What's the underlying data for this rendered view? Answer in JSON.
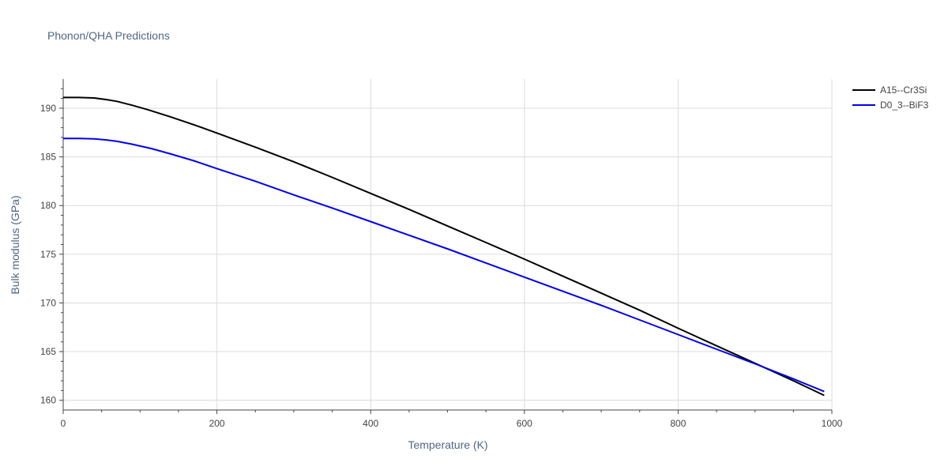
{
  "chart_data": {
    "type": "line",
    "title": "Phonon/QHA Predictions",
    "xlabel": "Temperature (K)",
    "ylabel": "Bulk modulus (GPa)",
    "xlim": [
      0,
      1000
    ],
    "ylim": [
      159,
      193
    ],
    "x_ticks": [
      0,
      200,
      400,
      600,
      800,
      1000
    ],
    "y_ticks": [
      160,
      165,
      170,
      175,
      180,
      185,
      190
    ],
    "grid": true,
    "legend_position": "top-right",
    "series": [
      {
        "name": "A15--Cr3Si",
        "color": "#000000",
        "x": [
          0,
          20,
          40,
          55,
          70,
          90,
          110,
          140,
          170,
          200,
          250,
          300,
          350,
          400,
          450,
          500,
          550,
          600,
          650,
          700,
          750,
          800,
          850,
          900,
          950,
          990
        ],
        "y": [
          191.1,
          191.1,
          191.05,
          190.9,
          190.7,
          190.3,
          189.85,
          189.1,
          188.3,
          187.45,
          186.0,
          184.5,
          182.9,
          181.25,
          179.6,
          177.9,
          176.2,
          174.5,
          172.75,
          171.0,
          169.25,
          167.4,
          165.6,
          163.8,
          162.0,
          160.5
        ]
      },
      {
        "name": "D0_3--BiF3",
        "color": "#0000ee",
        "x": [
          0,
          20,
          40,
          55,
          70,
          90,
          115,
          140,
          170,
          200,
          250,
          300,
          350,
          400,
          450,
          500,
          550,
          600,
          650,
          700,
          750,
          800,
          850,
          900,
          950,
          990
        ],
        "y": [
          186.9,
          186.9,
          186.85,
          186.75,
          186.6,
          186.3,
          185.85,
          185.3,
          184.6,
          183.8,
          182.5,
          181.1,
          179.75,
          178.35,
          176.95,
          175.55,
          174.1,
          172.65,
          171.2,
          169.75,
          168.25,
          166.75,
          165.25,
          163.75,
          162.2,
          160.9
        ]
      }
    ]
  }
}
